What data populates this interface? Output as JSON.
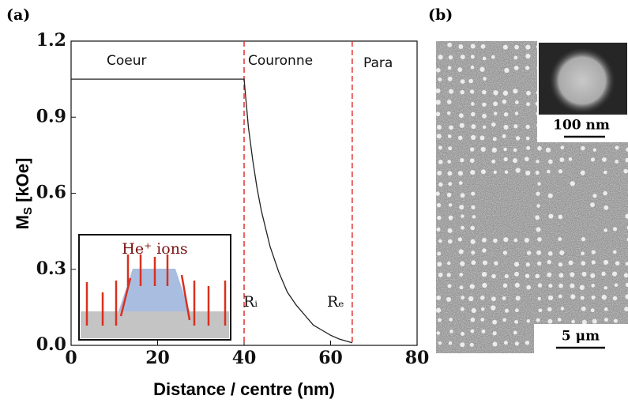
{
  "chart_data": {
    "type": "line",
    "panel_labels": [
      "(a)",
      "(b)"
    ],
    "xlabel": "Distance / centre (nm)",
    "ylabel_parts": [
      "M",
      "S",
      " [kOe]"
    ],
    "x": [
      0,
      10,
      20,
      30,
      40,
      41,
      42,
      43,
      44,
      45,
      46,
      48,
      50,
      52,
      54,
      56,
      58,
      60,
      62,
      65
    ],
    "series": [
      {
        "name": "Ms",
        "color": "#222222",
        "values": [
          1.05,
          1.05,
          1.05,
          1.05,
          1.05,
          0.86,
          0.73,
          0.62,
          0.53,
          0.46,
          0.39,
          0.29,
          0.21,
          0.16,
          0.12,
          0.08,
          0.06,
          0.04,
          0.025,
          0.01
        ]
      }
    ],
    "xlim": [
      0,
      80
    ],
    "xticks": [
      0,
      20,
      40,
      60,
      80
    ],
    "ylim": [
      0,
      1.2
    ],
    "yticks": [
      {
        "value": 0,
        "label": "0.0"
      },
      0.3,
      0.6,
      0.9,
      1.2
    ],
    "vlines": [
      40,
      65
    ],
    "vline_color": "#e03030",
    "annotations": [
      "Coeur",
      "Couronne",
      "Para",
      "Rᵢ",
      "Rₑ"
    ],
    "inset_label": "He⁺ ions",
    "image_scales": [
      "100 nm",
      "5 μm"
    ]
  }
}
